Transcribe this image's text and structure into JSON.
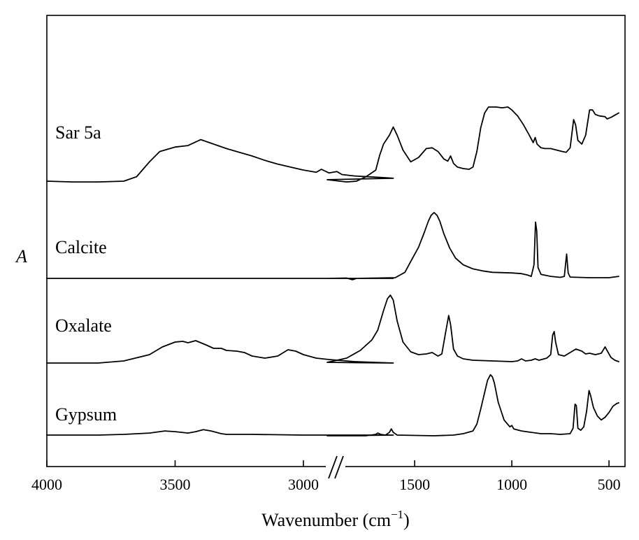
{
  "chart_data": {
    "type": "line",
    "xlabel": "Wavenumber (cm",
    "xlabel_sup": "−1",
    "xlabel_close": ")",
    "ylabel": "A",
    "x_axis": {
      "reversed": true,
      "broken": true,
      "segment_high": [
        4000,
        2650
      ],
      "segment_low": [
        1950,
        450
      ],
      "ticks": [
        {
          "value": 4000,
          "label": "4000"
        },
        {
          "value": 3500,
          "label": "3500"
        },
        {
          "value": 3000,
          "label": "3000"
        },
        {
          "value": 1500,
          "label": "1500"
        },
        {
          "value": 1000,
          "label": "1000"
        },
        {
          "value": 500,
          "label": "500"
        }
      ]
    },
    "grid": false,
    "legend": "inline-left",
    "series": [
      {
        "name": "Sar 5a",
        "points": [
          [
            4000,
            0.0
          ],
          [
            3900,
            -0.01
          ],
          [
            3800,
            -0.01
          ],
          [
            3700,
            0.0
          ],
          [
            3650,
            0.06
          ],
          [
            3600,
            0.26
          ],
          [
            3560,
            0.4
          ],
          [
            3500,
            0.46
          ],
          [
            3450,
            0.48
          ],
          [
            3400,
            0.56
          ],
          [
            3350,
            0.5
          ],
          [
            3300,
            0.44
          ],
          [
            3250,
            0.39
          ],
          [
            3200,
            0.34
          ],
          [
            3150,
            0.28
          ],
          [
            3100,
            0.23
          ],
          [
            3050,
            0.19
          ],
          [
            3000,
            0.15
          ],
          [
            2950,
            0.12
          ],
          [
            2930,
            0.16
          ],
          [
            2900,
            0.11
          ],
          [
            2870,
            0.13
          ],
          [
            2850,
            0.09
          ],
          [
            2800,
            0.07
          ],
          [
            2700,
            0.05
          ],
          [
            2650,
            0.04
          ],
          [
            1950,
            0.02
          ],
          [
            1850,
            -0.01
          ],
          [
            1800,
            0.0
          ],
          [
            1750,
            0.06
          ],
          [
            1700,
            0.15
          ],
          [
            1680,
            0.35
          ],
          [
            1660,
            0.5
          ],
          [
            1630,
            0.62
          ],
          [
            1610,
            0.73
          ],
          [
            1590,
            0.62
          ],
          [
            1560,
            0.42
          ],
          [
            1520,
            0.26
          ],
          [
            1480,
            0.32
          ],
          [
            1440,
            0.44
          ],
          [
            1410,
            0.45
          ],
          [
            1380,
            0.4
          ],
          [
            1350,
            0.3
          ],
          [
            1330,
            0.27
          ],
          [
            1315,
            0.34
          ],
          [
            1300,
            0.24
          ],
          [
            1280,
            0.19
          ],
          [
            1250,
            0.17
          ],
          [
            1220,
            0.16
          ],
          [
            1200,
            0.19
          ],
          [
            1180,
            0.4
          ],
          [
            1160,
            0.72
          ],
          [
            1140,
            0.92
          ],
          [
            1120,
            1.0
          ],
          [
            1080,
            1.0
          ],
          [
            1050,
            0.99
          ],
          [
            1020,
            1.0
          ],
          [
            1000,
            0.96
          ],
          [
            970,
            0.88
          ],
          [
            940,
            0.76
          ],
          [
            910,
            0.62
          ],
          [
            890,
            0.52
          ],
          [
            880,
            0.59
          ],
          [
            870,
            0.5
          ],
          [
            850,
            0.45
          ],
          [
            830,
            0.44
          ],
          [
            800,
            0.44
          ],
          [
            770,
            0.42
          ],
          [
            740,
            0.4
          ],
          [
            720,
            0.39
          ],
          [
            700,
            0.45
          ],
          [
            682,
            0.83
          ],
          [
            672,
            0.76
          ],
          [
            660,
            0.55
          ],
          [
            640,
            0.5
          ],
          [
            620,
            0.62
          ],
          [
            600,
            0.96
          ],
          [
            585,
            0.96
          ],
          [
            570,
            0.9
          ],
          [
            550,
            0.88
          ],
          [
            520,
            0.87
          ],
          [
            510,
            0.84
          ],
          [
            490,
            0.86
          ],
          [
            470,
            0.89
          ],
          [
            450,
            0.92
          ]
        ]
      },
      {
        "name": "Calcite",
        "points": [
          [
            4000,
            0.0
          ],
          [
            3500,
            0.0
          ],
          [
            3000,
            0.0
          ],
          [
            2650,
            0.0
          ],
          [
            1950,
            0.0
          ],
          [
            1850,
            0.005
          ],
          [
            1820,
            -0.02
          ],
          [
            1800,
            0.0
          ],
          [
            1600,
            0.01
          ],
          [
            1550,
            0.09
          ],
          [
            1520,
            0.25
          ],
          [
            1480,
            0.46
          ],
          [
            1450,
            0.68
          ],
          [
            1430,
            0.84
          ],
          [
            1415,
            0.93
          ],
          [
            1400,
            0.97
          ],
          [
            1385,
            0.93
          ],
          [
            1370,
            0.84
          ],
          [
            1350,
            0.66
          ],
          [
            1320,
            0.45
          ],
          [
            1290,
            0.3
          ],
          [
            1250,
            0.2
          ],
          [
            1200,
            0.14
          ],
          [
            1150,
            0.11
          ],
          [
            1100,
            0.09
          ],
          [
            1000,
            0.08
          ],
          [
            950,
            0.07
          ],
          [
            920,
            0.05
          ],
          [
            900,
            0.03
          ],
          [
            886,
            0.2
          ],
          [
            878,
            0.83
          ],
          [
            872,
            0.7
          ],
          [
            865,
            0.16
          ],
          [
            850,
            0.06
          ],
          [
            800,
            0.03
          ],
          [
            750,
            0.015
          ],
          [
            730,
            0.03
          ],
          [
            718,
            0.36
          ],
          [
            710,
            0.08
          ],
          [
            700,
            0.02
          ],
          [
            600,
            0.01
          ],
          [
            500,
            0.01
          ],
          [
            450,
            0.03
          ]
        ]
      },
      {
        "name": "Oxalate",
        "points": [
          [
            4000,
            0.0
          ],
          [
            3800,
            0.0
          ],
          [
            3700,
            0.03
          ],
          [
            3600,
            0.12
          ],
          [
            3550,
            0.23
          ],
          [
            3500,
            0.3
          ],
          [
            3470,
            0.31
          ],
          [
            3450,
            0.29
          ],
          [
            3420,
            0.32
          ],
          [
            3380,
            0.26
          ],
          [
            3350,
            0.21
          ],
          [
            3320,
            0.21
          ],
          [
            3300,
            0.18
          ],
          [
            3260,
            0.17
          ],
          [
            3230,
            0.15
          ],
          [
            3200,
            0.1
          ],
          [
            3150,
            0.07
          ],
          [
            3100,
            0.1
          ],
          [
            3060,
            0.19
          ],
          [
            3030,
            0.17
          ],
          [
            3000,
            0.12
          ],
          [
            2950,
            0.07
          ],
          [
            2900,
            0.05
          ],
          [
            2800,
            0.02
          ],
          [
            2650,
            0.0
          ],
          [
            1950,
            0.01
          ],
          [
            1850,
            0.07
          ],
          [
            1780,
            0.18
          ],
          [
            1720,
            0.33
          ],
          [
            1690,
            0.47
          ],
          [
            1660,
            0.75
          ],
          [
            1640,
            0.92
          ],
          [
            1625,
            0.97
          ],
          [
            1610,
            0.9
          ],
          [
            1590,
            0.6
          ],
          [
            1560,
            0.3
          ],
          [
            1520,
            0.16
          ],
          [
            1480,
            0.12
          ],
          [
            1440,
            0.13
          ],
          [
            1410,
            0.15
          ],
          [
            1380,
            0.1
          ],
          [
            1360,
            0.13
          ],
          [
            1340,
            0.45
          ],
          [
            1325,
            0.68
          ],
          [
            1315,
            0.55
          ],
          [
            1300,
            0.2
          ],
          [
            1280,
            0.1
          ],
          [
            1250,
            0.06
          ],
          [
            1200,
            0.04
          ],
          [
            1100,
            0.03
          ],
          [
            1000,
            0.02
          ],
          [
            970,
            0.03
          ],
          [
            950,
            0.06
          ],
          [
            930,
            0.03
          ],
          [
            900,
            0.04
          ],
          [
            880,
            0.06
          ],
          [
            860,
            0.04
          ],
          [
            820,
            0.07
          ],
          [
            800,
            0.12
          ],
          [
            790,
            0.4
          ],
          [
            782,
            0.45
          ],
          [
            775,
            0.3
          ],
          [
            760,
            0.12
          ],
          [
            730,
            0.1
          ],
          [
            700,
            0.15
          ],
          [
            670,
            0.2
          ],
          [
            640,
            0.17
          ],
          [
            620,
            0.13
          ],
          [
            600,
            0.14
          ],
          [
            570,
            0.12
          ],
          [
            540,
            0.14
          ],
          [
            520,
            0.23
          ],
          [
            510,
            0.18
          ],
          [
            490,
            0.08
          ],
          [
            470,
            0.04
          ],
          [
            450,
            0.02
          ]
        ]
      },
      {
        "name": "Gypsum",
        "points": [
          [
            4000,
            0.0
          ],
          [
            3800,
            0.0
          ],
          [
            3700,
            0.01
          ],
          [
            3600,
            0.03
          ],
          [
            3540,
            0.06
          ],
          [
            3500,
            0.05
          ],
          [
            3450,
            0.03
          ],
          [
            3420,
            0.05
          ],
          [
            3390,
            0.08
          ],
          [
            3360,
            0.06
          ],
          [
            3320,
            0.02
          ],
          [
            3300,
            0.01
          ],
          [
            3200,
            0.01
          ],
          [
            3000,
            0.0
          ],
          [
            2650,
            0.0
          ],
          [
            1950,
            -0.01
          ],
          [
            1750,
            -0.01
          ],
          [
            1700,
            0.01
          ],
          [
            1690,
            0.03
          ],
          [
            1675,
            0.01
          ],
          [
            1650,
            0.0
          ],
          [
            1630,
            0.04
          ],
          [
            1620,
            0.09
          ],
          [
            1610,
            0.04
          ],
          [
            1590,
            0.0
          ],
          [
            1400,
            -0.01
          ],
          [
            1300,
            0.0
          ],
          [
            1250,
            0.02
          ],
          [
            1200,
            0.06
          ],
          [
            1180,
            0.16
          ],
          [
            1160,
            0.38
          ],
          [
            1140,
            0.62
          ],
          [
            1125,
            0.8
          ],
          [
            1110,
            0.88
          ],
          [
            1100,
            0.85
          ],
          [
            1090,
            0.76
          ],
          [
            1070,
            0.48
          ],
          [
            1040,
            0.22
          ],
          [
            1010,
            0.12
          ],
          [
            1000,
            0.14
          ],
          [
            990,
            0.09
          ],
          [
            950,
            0.06
          ],
          [
            900,
            0.04
          ],
          [
            850,
            0.02
          ],
          [
            800,
            0.02
          ],
          [
            750,
            0.01
          ],
          [
            700,
            0.02
          ],
          [
            685,
            0.1
          ],
          [
            675,
            0.45
          ],
          [
            668,
            0.43
          ],
          [
            660,
            0.1
          ],
          [
            645,
            0.07
          ],
          [
            630,
            0.12
          ],
          [
            615,
            0.35
          ],
          [
            603,
            0.65
          ],
          [
            595,
            0.58
          ],
          [
            580,
            0.4
          ],
          [
            560,
            0.28
          ],
          [
            540,
            0.22
          ],
          [
            520,
            0.26
          ],
          [
            500,
            0.33
          ],
          [
            480,
            0.42
          ],
          [
            460,
            0.46
          ],
          [
            450,
            0.47
          ]
        ]
      }
    ]
  }
}
